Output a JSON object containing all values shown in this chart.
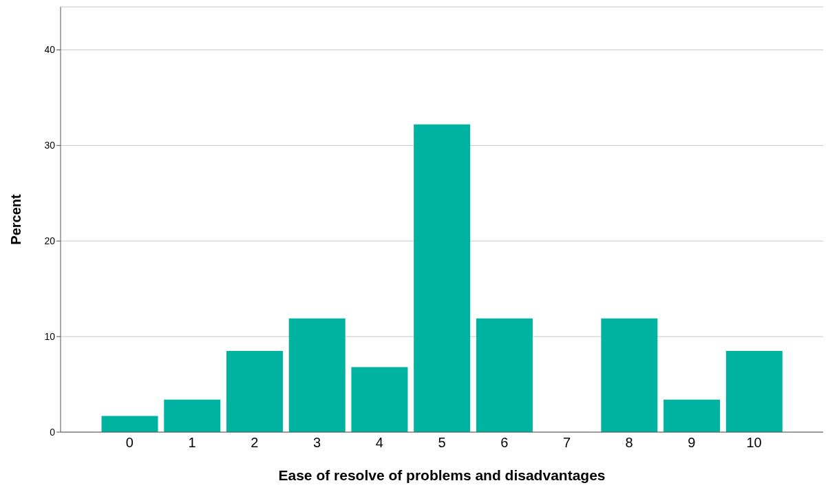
{
  "chart_data": {
    "type": "bar",
    "xlabel": "Ease of resolve of problems and disadvantages",
    "ylabel": "Percent",
    "categories": [
      "0",
      "1",
      "2",
      "3",
      "4",
      "5",
      "6",
      "7",
      "8",
      "9",
      "10"
    ],
    "values": [
      1.7,
      3.4,
      8.5,
      11.9,
      6.8,
      32.2,
      11.9,
      0,
      11.9,
      3.4,
      8.5
    ],
    "color": "#00b3a0",
    "ylim": [
      0,
      44.5
    ],
    "yticks": [
      0,
      10,
      20,
      30,
      40
    ],
    "grid": "y"
  }
}
